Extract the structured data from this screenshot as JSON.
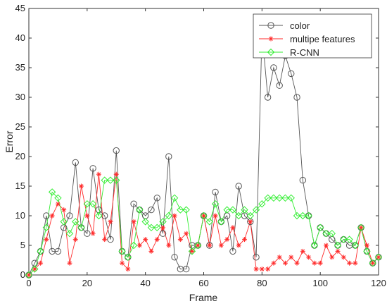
{
  "chart_data": {
    "type": "line",
    "xlabel": "Frame",
    "ylabel": "Error",
    "xlim": [
      0,
      120
    ],
    "ylim": [
      0,
      45
    ],
    "xticks": [
      0,
      20,
      40,
      60,
      80,
      100,
      120
    ],
    "yticks": [
      0,
      5,
      10,
      15,
      20,
      25,
      30,
      35,
      40,
      45
    ],
    "grid": false,
    "legend_position": "top-right",
    "series": [
      {
        "name": "color",
        "color": "#555555",
        "marker": "circle",
        "x": [
          0,
          2,
          4,
          6,
          8,
          10,
          12,
          14,
          16,
          18,
          20,
          22,
          24,
          26,
          28,
          30,
          32,
          34,
          36,
          38,
          40,
          42,
          44,
          46,
          48,
          50,
          52,
          54,
          56,
          58,
          60,
          62,
          64,
          66,
          68,
          70,
          72,
          74,
          76,
          78,
          80,
          82,
          84,
          86,
          88,
          90,
          92,
          94,
          96,
          98,
          100,
          102,
          104,
          106,
          108,
          110,
          112,
          114,
          116,
          118,
          120
        ],
        "y": [
          0,
          2,
          4,
          10,
          4,
          4,
          8,
          10,
          19,
          8,
          7,
          18,
          11,
          10,
          6,
          21,
          4,
          3,
          12,
          11,
          10,
          11,
          13,
          7,
          20,
          3,
          1,
          1,
          5,
          5,
          10,
          5,
          14,
          9,
          10,
          4,
          15,
          10,
          9,
          3,
          41,
          30,
          35,
          32,
          37,
          34,
          30,
          16,
          10,
          5,
          8,
          7,
          6,
          5,
          6,
          5,
          5,
          8,
          4,
          2,
          3
        ]
      },
      {
        "name": "multipe features",
        "color": "#ff2a2a",
        "marker": "star",
        "x": [
          0,
          2,
          4,
          6,
          8,
          10,
          12,
          14,
          16,
          18,
          20,
          22,
          24,
          26,
          28,
          30,
          32,
          34,
          36,
          38,
          40,
          42,
          44,
          46,
          48,
          50,
          52,
          54,
          56,
          58,
          60,
          62,
          64,
          66,
          68,
          70,
          72,
          74,
          76,
          78,
          80,
          82,
          84,
          86,
          88,
          90,
          92,
          94,
          96,
          98,
          100,
          102,
          104,
          106,
          108,
          110,
          112,
          114,
          116,
          118,
          120
        ],
        "y": [
          0,
          1,
          2,
          6,
          10,
          12,
          11,
          2,
          6,
          15,
          10,
          7,
          17,
          6,
          9,
          17,
          2,
          1,
          9,
          5,
          6,
          4,
          6,
          8,
          5,
          10,
          6,
          7,
          4,
          5,
          10,
          5,
          10,
          5,
          6,
          8,
          5,
          6,
          9,
          1,
          1,
          1,
          2,
          3,
          2,
          3,
          2,
          4,
          3,
          2,
          2,
          5,
          3,
          4,
          3,
          2,
          2,
          8,
          5,
          2,
          3
        ]
      },
      {
        "name": "R-CNN",
        "color": "#33ee33",
        "marker": "diamond",
        "x": [
          0,
          2,
          4,
          6,
          8,
          10,
          12,
          14,
          16,
          18,
          20,
          22,
          24,
          26,
          28,
          30,
          32,
          34,
          36,
          38,
          40,
          42,
          44,
          46,
          48,
          50,
          52,
          54,
          56,
          58,
          60,
          62,
          64,
          66,
          68,
          70,
          72,
          74,
          76,
          78,
          80,
          82,
          84,
          86,
          88,
          90,
          92,
          94,
          96,
          98,
          100,
          102,
          104,
          106,
          108,
          110,
          112,
          114,
          116,
          118,
          120
        ],
        "y": [
          0,
          1,
          4,
          8,
          14,
          13,
          9,
          7,
          9,
          8,
          12,
          12,
          10,
          16,
          16,
          16,
          4,
          3,
          5,
          11,
          9,
          8,
          8,
          9,
          10,
          13,
          11,
          11,
          4,
          5,
          10,
          9,
          12,
          9,
          11,
          11,
          10,
          11,
          10,
          11,
          12,
          13,
          13,
          13,
          13,
          13,
          10,
          10,
          10,
          5,
          8,
          7,
          7,
          5,
          6,
          6,
          5,
          8,
          4,
          2,
          3
        ]
      }
    ]
  }
}
